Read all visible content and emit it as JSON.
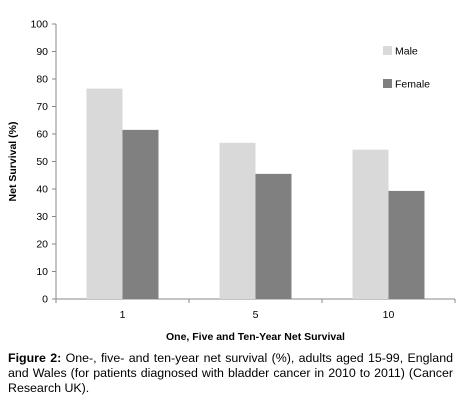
{
  "chart_data": {
    "type": "bar",
    "categories": [
      "1",
      "5",
      "10"
    ],
    "series": [
      {
        "name": "Male",
        "values": [
          76.5,
          56.8,
          54.3
        ],
        "color": "#d9d9d9"
      },
      {
        "name": "Female",
        "values": [
          61.5,
          45.5,
          39.3
        ],
        "color": "#808080"
      }
    ],
    "xlabel": "One, Five and Ten-Year Net Survival",
    "ylabel": "Net Survival (%)",
    "ylim": [
      0,
      100
    ],
    "yticks": [
      0,
      10,
      20,
      30,
      40,
      50,
      60,
      70,
      80,
      90,
      100
    ],
    "grid": false,
    "legend_position": "right"
  },
  "caption": {
    "label": "Figure 2:",
    "text": " One-, five- and ten-year net survival (%), adults aged 15-99, England and Wales (for patients diagnosed with bladder cancer in 2010 to 2011) (Cancer Research UK)."
  }
}
